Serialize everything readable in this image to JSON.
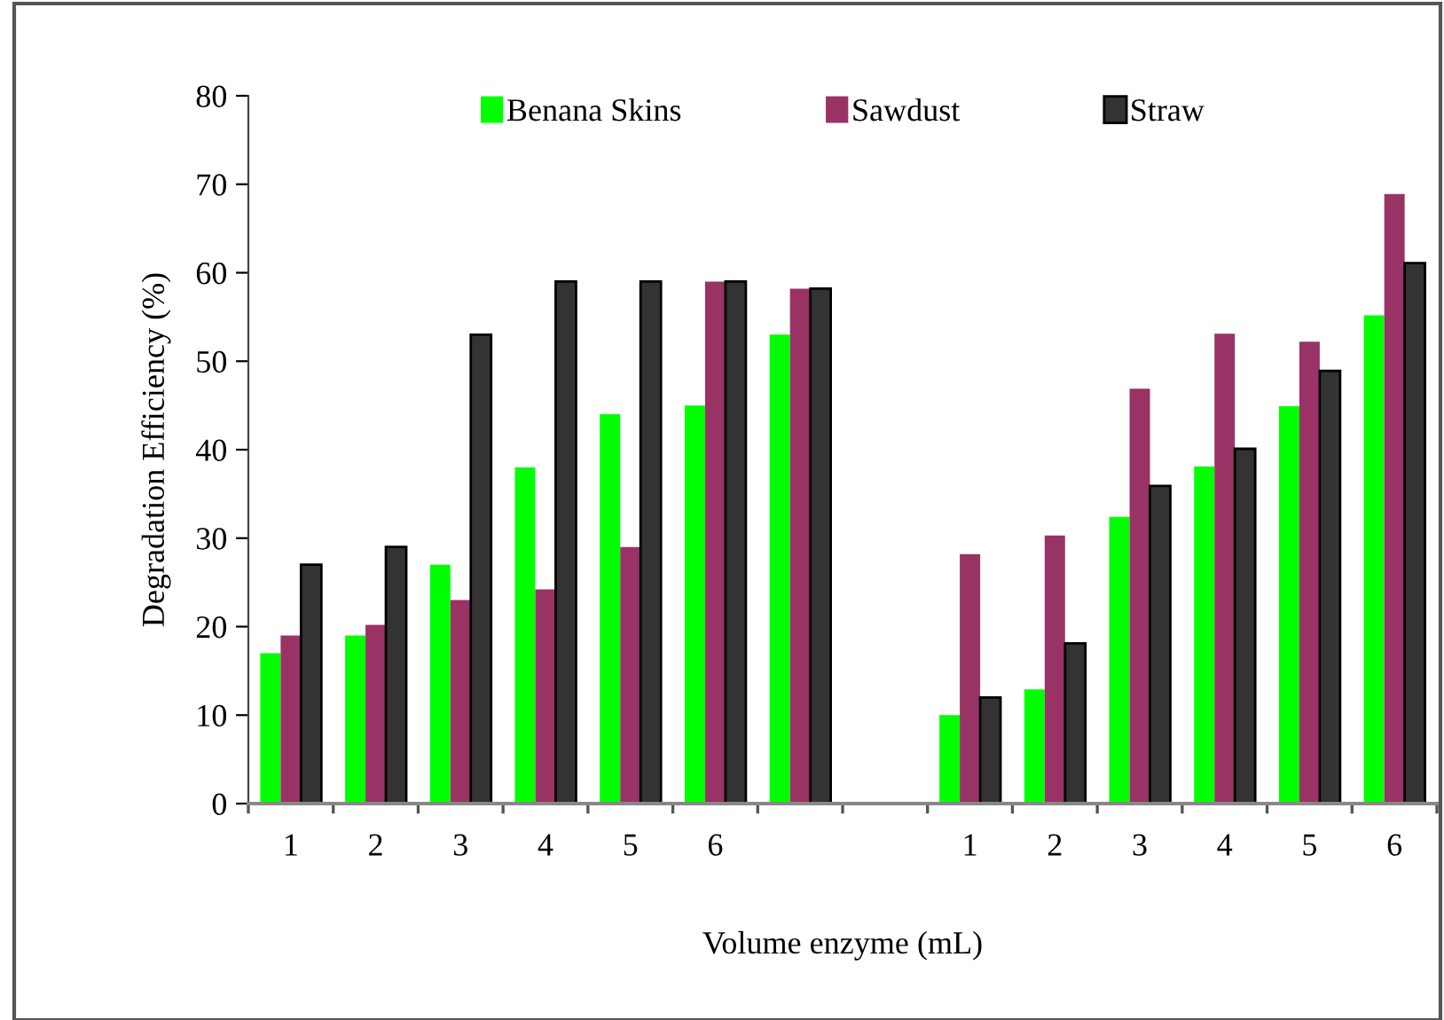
{
  "chart_data": {
    "type": "bar",
    "ylabel": "Degradation Efficiency (%)",
    "xlabel": "Volume enzyme (mL)",
    "categories": [
      "1",
      "2",
      "3",
      "4",
      "5",
      "6",
      null,
      null,
      "1",
      "2",
      "3",
      "4",
      "5",
      "6"
    ],
    "series": [
      {
        "name": "Benana Skins",
        "color": "#00ff00",
        "values": [
          17,
          19,
          27,
          38,
          44,
          45,
          53,
          null,
          10,
          12.9,
          32.4,
          38.1,
          44.9,
          55.2
        ]
      },
      {
        "name": "Sawdust",
        "color": "#993366",
        "values": [
          19,
          20.2,
          23,
          24.2,
          29,
          59,
          58.2,
          null,
          28.2,
          30.3,
          46.9,
          53.1,
          52.2,
          68.9
        ]
      },
      {
        "name": "Straw",
        "color": "#333333",
        "values": [
          27,
          29,
          53,
          59,
          59,
          59,
          58.2,
          null,
          12,
          18.1,
          35.9,
          40.1,
          48.9,
          61.1
        ]
      }
    ],
    "ylim": [
      0,
      80
    ],
    "yticks": [
      0,
      10,
      20,
      30,
      40,
      50,
      60,
      70,
      80
    ],
    "grid": false,
    "legend": "top"
  }
}
